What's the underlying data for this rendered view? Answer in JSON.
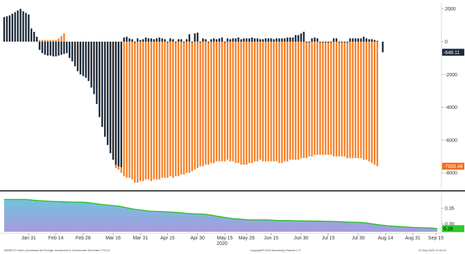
{
  "colors": {
    "navy": "#1c2a3c",
    "orange": "#f5822a",
    "axis": "#d9d9d9",
    "panel_sep": "#444444",
    "area_line": "#22c322",
    "area_top": "#71c3dc",
    "area_bottom": "#a89ae0",
    "navy_badge": "#1c2a3c",
    "orange_badge": "#f06a1a",
    "green_badge": "#2ec82e"
  },
  "x_labels": [
    "Jan 31",
    "Feb 14",
    "Feb 28",
    "Mar 16",
    "Mar 31",
    "Apr 15",
    "Apr 30",
    "May 15",
    "May 29",
    "Jun 15",
    "Jun 30",
    "Jul 15",
    "Jul 30",
    "Aug 14",
    "Aug 31",
    "Sep 15"
  ],
  "year_label": "2020",
  "upper_ticks": [
    "2000",
    "0",
    "-2000",
    "-4000",
    "-6000",
    "-8000"
  ],
  "lower_ticks": [
    "0.35",
    "0.30"
  ],
  "badges": {
    "navy": "-648.11",
    "orange": "-7593.48",
    "green": "0.28"
  },
  "footer": {
    "left": "INDBFOTI Index (Indonesia Net Foreign Investment in Government Securities YTD) D",
    "center": "Copyright® 2020 Bloomberg Finance L.P.",
    "right": "22-Sep-2020 12:32:01"
  },
  "chart_data": [
    {
      "type": "bar",
      "title": "",
      "xlabel": "2020",
      "ylabel": "",
      "ylim": [
        -8800,
        2200
      ],
      "x_range": [
        0,
        159
      ],
      "x_tick_positions": [
        9,
        19,
        29,
        40,
        50,
        60,
        71,
        81,
        89,
        98,
        109,
        119,
        130,
        140,
        150,
        161
      ],
      "series": [
        {
          "values": [
            1500,
            1550,
            1600,
            1700,
            1800,
            1900,
            2000,
            1850,
            1750,
            1650,
            800,
            600,
            300,
            -500,
            -700,
            -800,
            -850,
            -850,
            -900,
            -900,
            -850,
            -800,
            -750,
            -700,
            -1000,
            -1200,
            -1500,
            -1800,
            -2000,
            -2100,
            -2200,
            -2400,
            -2800,
            -3200,
            -3800,
            -4600,
            -5200,
            -5800,
            -6300,
            -6800,
            -7200,
            -7500,
            -7600,
            -7650,
            250,
            300,
            200,
            150,
            -50,
            200,
            100,
            150,
            250,
            200,
            200,
            150,
            200,
            250,
            200,
            150,
            -50,
            200,
            150,
            -50,
            150,
            150,
            -50,
            150,
            450,
            -50,
            500,
            550,
            -50,
            200,
            150,
            -50,
            150,
            200,
            150,
            200,
            250,
            -50,
            200,
            150,
            200,
            200,
            250,
            150,
            200,
            200,
            200,
            250,
            200,
            200,
            150,
            150,
            200,
            200,
            200,
            150,
            200,
            200,
            200,
            200,
            250,
            250,
            250,
            400,
            400,
            500,
            600,
            -50,
            -50,
            200,
            250,
            200,
            -50,
            -50,
            -50,
            -50,
            -50,
            200,
            200,
            -50,
            -50,
            -50,
            -50,
            200,
            200,
            200,
            200,
            200,
            300,
            200,
            150,
            150,
            100,
            50,
            0,
            -648.11
          ]
        },
        {
          "values": [
            0,
            0,
            0,
            0,
            0,
            0,
            0,
            0,
            0,
            0,
            0,
            100,
            100,
            100,
            100,
            100,
            100,
            100,
            100,
            100,
            200,
            350,
            500,
            0,
            0,
            0,
            0,
            -1200,
            -1500,
            -1800,
            -2000,
            -2100,
            -2200,
            -2400,
            -2800,
            -3500,
            -4200,
            -4800,
            -5500,
            -6300,
            -7200,
            -7700,
            -7800,
            -8000,
            -8200,
            -8300,
            -8300,
            -8400,
            -8600,
            -8600,
            -8500,
            -8500,
            -8400,
            -8400,
            -8500,
            -8400,
            -8400,
            -8400,
            -8300,
            -8300,
            -8300,
            -8200,
            -8300,
            -8200,
            -8200,
            -8100,
            -8100,
            -8000,
            -8000,
            -7900,
            -7800,
            -7700,
            -7600,
            -7600,
            -7500,
            -7500,
            -7400,
            -7400,
            -7300,
            -7300,
            -7300,
            -7300,
            -7200,
            -7300,
            -7300,
            -7400,
            -7400,
            -7500,
            -7500,
            -7500,
            -7400,
            -7400,
            -7300,
            -7300,
            -7200,
            -7300,
            -7300,
            -7300,
            -7300,
            -7300,
            -7300,
            -7400,
            -7400,
            -7300,
            -7300,
            -7200,
            -7200,
            -7200,
            -7200,
            -7100,
            -7100,
            -7100,
            -7000,
            -7000,
            -6900,
            -6900,
            -6900,
            -6900,
            -6900,
            -6900,
            -6900,
            -7000,
            -7000,
            -7000,
            -7000,
            -7000,
            -7100,
            -7100,
            -7100,
            -7100,
            -7100,
            -7100,
            -7200,
            -7200,
            -7300,
            -7400,
            -7500,
            -7593.48
          ]
        }
      ]
    },
    {
      "type": "area",
      "title": "",
      "xlabel": "",
      "ylabel": "",
      "ylim": [
        0.275,
        0.39
      ],
      "x_range": [
        0,
        159
      ],
      "x": [
        0,
        8,
        13,
        18,
        24,
        30,
        36,
        42,
        47,
        53,
        59,
        63,
        68,
        74,
        80,
        84,
        90,
        96,
        101,
        104,
        108,
        115,
        121,
        126,
        131,
        133,
        137,
        141,
        145,
        150,
        157,
        159
      ],
      "series": [
        {
          "values": [
            0.378,
            0.378,
            0.374,
            0.372,
            0.37,
            0.369,
            0.362,
            0.357,
            0.348,
            0.341,
            0.339,
            0.337,
            0.333,
            0.331,
            0.322,
            0.317,
            0.313,
            0.313,
            0.311,
            0.311,
            0.31,
            0.309,
            0.308,
            0.306,
            0.305,
            0.303,
            0.298,
            0.294,
            0.292,
            0.289,
            0.287,
            0.285
          ]
        }
      ]
    }
  ]
}
